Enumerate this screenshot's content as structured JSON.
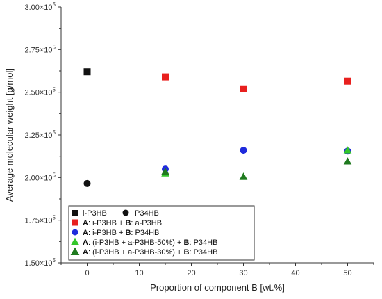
{
  "chart_data": {
    "type": "scatter",
    "xlabel": "Proportion of component B [wt.%]",
    "ylabel": "Average molecular weight [g/mol]",
    "xlim": [
      -5,
      55
    ],
    "ylim": [
      150000,
      300000
    ],
    "xticks": [
      0,
      10,
      20,
      30,
      40,
      50
    ],
    "xtick_labels": [
      "0",
      "10",
      "20",
      "30",
      "40",
      "50"
    ],
    "yticks": [
      150000,
      175000,
      200000,
      225000,
      250000,
      275000,
      300000
    ],
    "ytick_labels": [
      {
        "base": "1.50×10",
        "exp": "5"
      },
      {
        "base": "1.75×10",
        "exp": "5"
      },
      {
        "base": "2.00×10",
        "exp": "5"
      },
      {
        "base": "2.25×10",
        "exp": "5"
      },
      {
        "base": "2.50×10",
        "exp": "5"
      },
      {
        "base": "2.75×10",
        "exp": "5"
      },
      {
        "base": "3.00×10",
        "exp": "5"
      }
    ],
    "grid": false,
    "legend_position": "bottom-left",
    "series": [
      {
        "name": "i-P3HB",
        "marker": "square",
        "color": "#111111",
        "points": [
          {
            "x": 0,
            "y": 262000
          }
        ]
      },
      {
        "name": "P34HB",
        "marker": "circle",
        "color": "#111111",
        "points": [
          {
            "x": 0,
            "y": 196500
          }
        ]
      },
      {
        "name_parts": [
          {
            "text": "A",
            "bold": true
          },
          {
            "text": ": i-P3HB + ",
            "bold": false
          },
          {
            "text": "B",
            "bold": true
          },
          {
            "text": ": a-P3HB",
            "bold": false
          }
        ],
        "marker": "square",
        "color": "#e8201e",
        "points": [
          {
            "x": 15,
            "y": 259000
          },
          {
            "x": 30,
            "y": 252000
          },
          {
            "x": 50,
            "y": 256500
          }
        ]
      },
      {
        "name_parts": [
          {
            "text": "A",
            "bold": true
          },
          {
            "text": ": i-P3HB + ",
            "bold": false
          },
          {
            "text": "B",
            "bold": true
          },
          {
            "text": ": P34HB",
            "bold": false
          }
        ],
        "marker": "circle",
        "color": "#1f2bdc",
        "points": [
          {
            "x": 15,
            "y": 205000
          },
          {
            "x": 30,
            "y": 216000
          },
          {
            "x": 50,
            "y": 215500
          }
        ]
      },
      {
        "name_parts": [
          {
            "text": "A",
            "bold": true
          },
          {
            "text": ": (i-P3HB + a-P3HB-50%) + ",
            "bold": false
          },
          {
            "text": "B",
            "bold": true
          },
          {
            "text": ": P34HB",
            "bold": false
          }
        ],
        "marker": "triangle",
        "color": "#33c72a",
        "points": [
          {
            "x": 15,
            "y": 202500
          },
          {
            "x": 30,
            "y": 200500
          },
          {
            "x": 50,
            "y": 216000
          }
        ]
      },
      {
        "name_parts": [
          {
            "text": "A",
            "bold": true
          },
          {
            "text": ": (i-P3HB + a-P3HB-30%) + ",
            "bold": false
          },
          {
            "text": "B",
            "bold": true
          },
          {
            "text": ": P34HB",
            "bold": false
          }
        ],
        "marker": "triangle",
        "color": "#1f7a1f",
        "points": [
          {
            "x": 15,
            "y": 203500
          },
          {
            "x": 30,
            "y": 200500
          },
          {
            "x": 50,
            "y": 209500
          }
        ]
      }
    ]
  }
}
